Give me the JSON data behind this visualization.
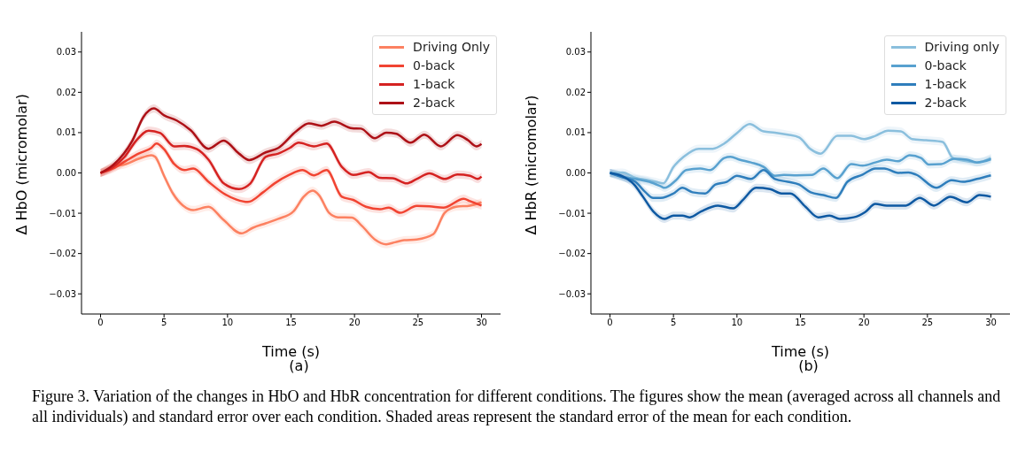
{
  "chart_data": [
    {
      "type": "line",
      "title": "(a)",
      "xlabel": "Time (s)",
      "ylabel": "Δ HbO (micromolar)",
      "xlim": [
        -1.5,
        31.5
      ],
      "ylim": [
        -0.035,
        0.035
      ],
      "xticks": [
        0,
        5,
        10,
        15,
        20,
        25,
        30
      ],
      "yticks": [
        {
          "value": -0.03,
          "label": "−0.03"
        },
        {
          "value": -0.02,
          "label": "−0.02"
        },
        {
          "value": -0.01,
          "label": "−0.01"
        },
        {
          "value": 0,
          "label": "0.00"
        },
        0.01,
        0.02,
        0.03
      ],
      "grid": false,
      "legend": "top right",
      "annotations": [
        "Figure 3. Variation of the changes in HbO and HbR concentration for different conditions. The figures show the mean (averaged across all channels and all individuals) and standard error over each condition. Shaded areas represent the standard error of the mean for each condition."
      ],
      "series": [
        {
          "name": "Driving Only",
          "color": "#fc8161",
          "x": [
            0,
            1.0,
            2.0,
            3.0,
            4.0,
            4.3,
            5.0,
            5.7,
            6.5,
            7.3,
            8.5,
            9.6,
            11.1,
            12.0,
            13.0,
            14.0,
            15.2,
            16.0,
            16.7,
            17.2,
            18.0,
            18.7,
            19.8,
            20.6,
            21.6,
            22.5,
            23.2,
            23.9,
            24.9,
            26.2,
            27.1,
            28.0,
            29.1,
            30.0
          ],
          "values": [
            0,
            0.0015,
            0.0022,
            0.0035,
            0.0044,
            0.004,
            -0.0007,
            -0.0051,
            -0.0081,
            -0.0092,
            -0.0084,
            -0.0114,
            -0.015,
            -0.0136,
            -0.0125,
            -0.0114,
            -0.0095,
            -0.0059,
            -0.0044,
            -0.0055,
            -0.0099,
            -0.011,
            -0.0111,
            -0.0132,
            -0.0165,
            -0.0177,
            -0.0172,
            -0.0167,
            -0.0165,
            -0.0152,
            -0.0099,
            -0.0084,
            -0.0081,
            -0.0073
          ],
          "lower": [
            -0.001,
            0.0005,
            0.0012,
            0.0025,
            0.0034,
            0.003,
            -0.0017,
            -0.0061,
            -0.0091,
            -0.0102,
            -0.0094,
            -0.0124,
            -0.016,
            -0.0146,
            -0.0135,
            -0.0124,
            -0.0105,
            -0.0069,
            -0.0054,
            -0.0065,
            -0.0109,
            -0.012,
            -0.0121,
            -0.0142,
            -0.0175,
            -0.0187,
            -0.0182,
            -0.0177,
            -0.0175,
            -0.0162,
            -0.0109,
            -0.0094,
            -0.0091,
            -0.0083
          ],
          "upper": [
            0.001,
            0.0025,
            0.0032,
            0.0045,
            0.0054,
            0.005,
            0.0003,
            -0.0041,
            -0.0071,
            -0.0082,
            -0.0074,
            -0.0104,
            -0.014,
            -0.0126,
            -0.0115,
            -0.0104,
            -0.0085,
            -0.0049,
            -0.0034,
            -0.0045,
            -0.0089,
            -0.01,
            -0.0101,
            -0.0122,
            -0.0155,
            -0.0167,
            -0.0162,
            -0.0157,
            -0.0155,
            -0.0142,
            -0.0089,
            -0.0074,
            -0.0071,
            -0.0063
          ]
        },
        {
          "name": "0-back",
          "color": "#f14432",
          "x": [
            0,
            1.0,
            2.0,
            3.0,
            4.0,
            4.4,
            5.0,
            5.8,
            6.6,
            7.3,
            8.5,
            9.7,
            10.7,
            11.6,
            12.8,
            13.7,
            14.9,
            15.9,
            16.8,
            17.8,
            19.0,
            19.9,
            20.9,
            22.0,
            22.7,
            23.6,
            24.9,
            25.9,
            27.0,
            28.6,
            29.1,
            30.0
          ],
          "values": [
            0,
            0.0011,
            0.003,
            0.0048,
            0.0062,
            0.0073,
            0.0059,
            0.0022,
            0.0007,
            0.0011,
            -0.0022,
            -0.0051,
            -0.0066,
            -0.0072,
            -0.0048,
            -0.0026,
            -0.0004,
            0.0007,
            -0.0006,
            0.0007,
            -0.0059,
            -0.0067,
            -0.0084,
            -0.009,
            -0.0086,
            -0.0099,
            -0.0082,
            -0.0083,
            -0.0086,
            -0.0064,
            -0.007,
            -0.0081
          ],
          "lower": [
            -0.001,
            0.0001,
            0.002,
            0.0038,
            0.0052,
            0.0063,
            0.0049,
            0.0012,
            -0.0003,
            0.0001,
            -0.0032,
            -0.0061,
            -0.0076,
            -0.0082,
            -0.0058,
            -0.0036,
            -0.0014,
            -0.0003,
            -0.0016,
            -0.0003,
            -0.0069,
            -0.0077,
            -0.0094,
            -0.01,
            -0.0096,
            -0.0109,
            -0.0092,
            -0.0093,
            -0.0096,
            -0.0074,
            -0.008,
            -0.0091
          ],
          "upper": [
            0.001,
            0.0021,
            0.004,
            0.0058,
            0.0072,
            0.0083,
            0.0069,
            0.0032,
            0.0017,
            0.0021,
            -0.0012,
            -0.0041,
            -0.0056,
            -0.0062,
            -0.0038,
            -0.0016,
            0.0006,
            0.0017,
            0.0004,
            0.0017,
            -0.0049,
            -0.0057,
            -0.0074,
            -0.008,
            -0.0076,
            -0.0089,
            -0.0072,
            -0.0073,
            -0.0076,
            -0.0054,
            -0.006,
            -0.0071
          ]
        },
        {
          "name": "1-back",
          "color": "#d52221",
          "x": [
            0,
            1.0,
            1.9,
            2.8,
            3.8,
            4.7,
            5.8,
            6.6,
            7.6,
            8.5,
            9.7,
            10.9,
            11.8,
            13.0,
            14.0,
            14.9,
            15.6,
            16.8,
            17.8,
            19.0,
            19.9,
            21.1,
            22.0,
            23.0,
            24.1,
            24.9,
            25.9,
            27.1,
            28.1,
            29.1,
            29.7,
            30.0
          ],
          "values": [
            0,
            0.0015,
            0.004,
            0.008,
            0.0105,
            0.0099,
            0.0066,
            0.0067,
            0.0059,
            0.0033,
            -0.0026,
            -0.004,
            -0.0026,
            0.004,
            0.0048,
            0.0062,
            0.0075,
            0.0066,
            0.0073,
            0.0015,
            -0.0005,
            0.0002,
            -0.0012,
            -0.0013,
            -0.0026,
            -0.0015,
            -0.0001,
            -0.0015,
            -0.0004,
            -0.0007,
            -0.0015,
            -0.0009
          ],
          "lower": [
            -0.001,
            0.0005,
            0.003,
            0.007,
            0.0095,
            0.0089,
            0.0056,
            0.0057,
            0.0049,
            0.0023,
            -0.0036,
            -0.005,
            -0.0036,
            0.003,
            0.0038,
            0.0052,
            0.0065,
            0.0056,
            0.0063,
            0.0005,
            -0.0015,
            -0.0008,
            -0.0022,
            -0.0023,
            -0.0036,
            -0.0025,
            -0.0011,
            -0.0025,
            -0.0014,
            -0.0017,
            -0.0025,
            -0.0019
          ],
          "upper": [
            0.001,
            0.0025,
            0.005,
            0.009,
            0.0115,
            0.0109,
            0.0076,
            0.0077,
            0.0069,
            0.0043,
            -0.0016,
            -0.003,
            -0.0016,
            0.005,
            0.0058,
            0.0072,
            0.0085,
            0.0076,
            0.0083,
            0.0025,
            0.0005,
            0.0012,
            -0.0002,
            -0.0003,
            -0.0016,
            -0.0005,
            0.0009,
            -0.0005,
            0.0006,
            0.0003,
            -0.0005,
            0.0001
          ]
        },
        {
          "name": "2-back",
          "color": "#ad1117",
          "x": [
            0,
            1.0,
            2.5,
            3.4,
            4.2,
            5.0,
            6.0,
            7.1,
            8.5,
            9.7,
            10.9,
            11.7,
            13.0,
            14.0,
            15.4,
            16.4,
            17.4,
            18.4,
            19.8,
            20.5,
            21.6,
            22.5,
            23.3,
            24.4,
            25.5,
            26.8,
            28.1,
            28.9,
            29.6,
            30.0
          ],
          "values": [
            0,
            0.002,
            0.008,
            0.014,
            0.016,
            0.0143,
            0.013,
            0.0106,
            0.006,
            0.008,
            0.0048,
            0.0032,
            0.0051,
            0.0062,
            0.0103,
            0.0123,
            0.0117,
            0.0127,
            0.0111,
            0.011,
            0.0086,
            0.01,
            0.0097,
            0.0075,
            0.0095,
            0.0066,
            0.0094,
            0.0082,
            0.0066,
            0.0072
          ],
          "lower": [
            -0.001,
            0.001,
            0.007,
            0.013,
            0.015,
            0.0133,
            0.012,
            0.0096,
            0.005,
            0.007,
            0.0038,
            0.0022,
            0.0041,
            0.0052,
            0.0093,
            0.0113,
            0.0107,
            0.0117,
            0.0101,
            0.01,
            0.0076,
            0.009,
            0.0087,
            0.0065,
            0.0085,
            0.0056,
            0.0084,
            0.0072,
            0.0056,
            0.0062
          ],
          "upper": [
            0.001,
            0.003,
            0.009,
            0.015,
            0.017,
            0.0153,
            0.014,
            0.0116,
            0.007,
            0.009,
            0.0058,
            0.0042,
            0.0061,
            0.0072,
            0.0113,
            0.0133,
            0.0127,
            0.0137,
            0.0121,
            0.012,
            0.0096,
            0.011,
            0.0107,
            0.0085,
            0.0105,
            0.0076,
            0.0104,
            0.0092,
            0.0076,
            0.0082
          ]
        }
      ]
    },
    {
      "type": "line",
      "title": "(b)",
      "xlabel": "Time (s)",
      "ylabel": "Δ HbR (micromolar)",
      "xlim": [
        -1.5,
        31.5
      ],
      "ylim": [
        -0.035,
        0.035
      ],
      "xticks": [
        0,
        5,
        10,
        15,
        20,
        25,
        30
      ],
      "yticks": [
        {
          "value": -0.03,
          "label": "−0.03"
        },
        {
          "value": -0.02,
          "label": "−0.02"
        },
        {
          "value": -0.01,
          "label": "−0.01"
        },
        {
          "value": 0,
          "label": "0.00"
        },
        0.01,
        0.02,
        0.03
      ],
      "grid": false,
      "legend": "top right",
      "series": [
        {
          "name": "Driving only",
          "color": "#8abfdd",
          "x": [
            0,
            1.0,
            2.0,
            3.0,
            3.6,
            4.2,
            5.0,
            5.8,
            7.0,
            8.1,
            9.0,
            10.0,
            11.0,
            12.1,
            13.0,
            14.0,
            14.9,
            15.8,
            16.6,
            17.9,
            19.0,
            20.0,
            20.9,
            21.9,
            22.9,
            23.8,
            24.9,
            26.2,
            27.0,
            28.1,
            28.9,
            30.0
          ],
          "values": [
            0,
            0.0001,
            -0.0012,
            -0.0018,
            -0.0022,
            -0.0026,
            0.0015,
            0.004,
            0.006,
            0.006,
            0.0073,
            0.0099,
            0.0121,
            0.0103,
            0.01,
            0.0095,
            0.0088,
            0.0059,
            0.0048,
            0.0092,
            0.0092,
            0.0084,
            0.0092,
            0.0105,
            0.0103,
            0.0084,
            0.0081,
            0.0077,
            0.0037,
            0.0029,
            0.0026,
            0.0037
          ],
          "lower": [
            -0.001,
            -0.0009,
            -0.0022,
            -0.0028,
            -0.0032,
            -0.0036,
            0.0005,
            0.003,
            0.005,
            0.005,
            0.0063,
            0.0089,
            0.0111,
            0.0093,
            0.009,
            0.0085,
            0.0078,
            0.0049,
            0.0038,
            0.0082,
            0.0082,
            0.0074,
            0.0082,
            0.0095,
            0.0093,
            0.0074,
            0.0071,
            0.0067,
            0.0027,
            0.0019,
            0.0016,
            0.0027
          ],
          "upper": [
            0.001,
            0.0011,
            -0.0002,
            -0.0008,
            -0.0012,
            -0.0016,
            0.0025,
            0.005,
            0.007,
            0.007,
            0.0083,
            0.0109,
            0.0131,
            0.0113,
            0.011,
            0.0105,
            0.0098,
            0.0069,
            0.0058,
            0.0102,
            0.0102,
            0.0094,
            0.0102,
            0.0115,
            0.0113,
            0.0094,
            0.0091,
            0.0087,
            0.0047,
            0.0039,
            0.0036,
            0.0047
          ]
        },
        {
          "name": "0-back",
          "color": "#58a1cf",
          "x": [
            0,
            1.0,
            2.0,
            3.1,
            4.0,
            4.3,
            5.2,
            6.0,
            7.1,
            7.9,
            9.0,
            9.5,
            10.2,
            11.1,
            12.1,
            13.0,
            13.7,
            14.7,
            15.9,
            16.8,
            17.9,
            19.0,
            19.9,
            20.9,
            21.8,
            22.7,
            23.6,
            24.5,
            25.1,
            26.1,
            27.1,
            28.1,
            28.9,
            30.0
          ],
          "values": [
            0,
            -0.0009,
            -0.0015,
            -0.0022,
            -0.0033,
            -0.0037,
            -0.0018,
            0.0007,
            0.0011,
            0.0007,
            0.0037,
            0.004,
            0.0033,
            0.0026,
            0.0015,
            -0.0007,
            -0.0005,
            -0.0006,
            -0.0005,
            0.0011,
            -0.0013,
            0.0022,
            0.0018,
            0.0026,
            0.0033,
            0.0029,
            0.0044,
            0.0037,
            0.0021,
            0.0022,
            0.0035,
            0.0033,
            0.0026,
            0.0034
          ],
          "lower": [
            -0.001,
            -0.0019,
            -0.0025,
            -0.0032,
            -0.0043,
            -0.0047,
            -0.0028,
            -0.0003,
            0.0001,
            -0.0003,
            0.0027,
            0.003,
            0.0023,
            0.0016,
            0.0005,
            -0.0017,
            -0.0015,
            -0.0016,
            -0.0015,
            0.0001,
            -0.0023,
            0.0012,
            0.0008,
            0.0016,
            0.0023,
            0.0019,
            0.0034,
            0.0027,
            0.0011,
            0.0012,
            0.0025,
            0.0023,
            0.0016,
            0.0024
          ],
          "upper": [
            0.001,
            0.0001,
            -0.0005,
            -0.0012,
            -0.0023,
            -0.0027,
            -0.0008,
            0.0017,
            0.0021,
            0.0017,
            0.0047,
            0.005,
            0.0043,
            0.0036,
            0.0025,
            0.0003,
            0.0005,
            0.0004,
            0.0005,
            0.0021,
            -0.0003,
            0.0032,
            0.0028,
            0.0036,
            0.0043,
            0.0039,
            0.0054,
            0.0047,
            0.0031,
            0.0032,
            0.0045,
            0.0043,
            0.0036,
            0.0044
          ]
        },
        {
          "name": "1-back",
          "color": "#2f7ebc",
          "x": [
            0,
            1.0,
            2.0,
            2.8,
            3.4,
            4.0,
            5.0,
            5.7,
            6.5,
            7.5,
            8.3,
            9.2,
            10.0,
            11.1,
            12.1,
            13.0,
            14.0,
            14.9,
            15.8,
            16.8,
            17.8,
            18.7,
            19.9,
            20.9,
            21.6,
            22.7,
            23.5,
            24.1,
            25.7,
            26.9,
            27.8,
            28.9,
            30.0
          ],
          "values": [
            0,
            -0.0011,
            -0.0022,
            -0.0048,
            -0.0062,
            -0.0062,
            -0.0051,
            -0.0037,
            -0.0048,
            -0.0051,
            -0.0029,
            -0.0022,
            -0.0007,
            -0.0015,
            0.0007,
            -0.0015,
            -0.0022,
            -0.0029,
            -0.0048,
            -0.0055,
            -0.0062,
            -0.0022,
            -0.0004,
            0.0011,
            0.0011,
            0,
            0.0001,
            -0.0004,
            -0.0037,
            -0.0018,
            -0.0022,
            -0.0015,
            -0.0006
          ],
          "lower": [
            -0.001,
            -0.0021,
            -0.0032,
            -0.0058,
            -0.0072,
            -0.0072,
            -0.0061,
            -0.0047,
            -0.0058,
            -0.0061,
            -0.0039,
            -0.0032,
            -0.0017,
            -0.0025,
            -0.0003,
            -0.0025,
            -0.0032,
            -0.0039,
            -0.0058,
            -0.0065,
            -0.0072,
            -0.0032,
            -0.0014,
            0.0001,
            0.0001,
            -0.001,
            -0.0009,
            -0.0014,
            -0.0047,
            -0.0028,
            -0.0032,
            -0.0025,
            -0.0016
          ],
          "upper": [
            0.001,
            -0.0001,
            -0.0012,
            -0.0038,
            -0.0052,
            -0.0052,
            -0.0041,
            -0.0027,
            -0.0038,
            -0.0041,
            -0.0019,
            -0.0012,
            0.0003,
            -0.0005,
            0.0017,
            -0.0005,
            -0.0012,
            -0.0019,
            -0.0038,
            -0.0045,
            -0.0052,
            -0.0012,
            0.0006,
            0.0021,
            0.0021,
            0.001,
            0.0011,
            0.0006,
            -0.0027,
            -0.0008,
            -0.0012,
            -0.0005,
            0.0004
          ]
        },
        {
          "name": "2-back",
          "color": "#0e59a2",
          "x": [
            0,
            0.9,
            1.9,
            2.6,
            3.4,
            4.3,
            5.0,
            5.7,
            6.3,
            7.2,
            8.5,
            9.7,
            10.5,
            11.5,
            12.6,
            13.5,
            14.2,
            15.4,
            16.4,
            17.3,
            18.1,
            19.2,
            20.1,
            20.9,
            21.8,
            22.7,
            23.3,
            24.4,
            25.5,
            26.8,
            28.1,
            29.1,
            30.0
          ],
          "values": [
            0,
            -0.0007,
            -0.0029,
            -0.0059,
            -0.0095,
            -0.0114,
            -0.0106,
            -0.0106,
            -0.011,
            -0.0095,
            -0.0081,
            -0.0088,
            -0.0066,
            -0.0037,
            -0.004,
            -0.0051,
            -0.0051,
            -0.0084,
            -0.011,
            -0.0106,
            -0.0114,
            -0.011,
            -0.0097,
            -0.0077,
            -0.0081,
            -0.0081,
            -0.0081,
            -0.0062,
            -0.0081,
            -0.0059,
            -0.0073,
            -0.0055,
            -0.0059
          ],
          "lower": [
            -0.001,
            -0.0017,
            -0.0039,
            -0.0069,
            -0.0105,
            -0.0124,
            -0.0116,
            -0.0116,
            -0.012,
            -0.0105,
            -0.0091,
            -0.0098,
            -0.0076,
            -0.0047,
            -0.005,
            -0.0061,
            -0.0061,
            -0.0094,
            -0.012,
            -0.0116,
            -0.0124,
            -0.012,
            -0.0107,
            -0.0087,
            -0.0091,
            -0.0091,
            -0.0091,
            -0.0072,
            -0.0091,
            -0.0069,
            -0.0083,
            -0.0065,
            -0.0069
          ],
          "upper": [
            0.001,
            0.0003,
            -0.0019,
            -0.0049,
            -0.0085,
            -0.0104,
            -0.0096,
            -0.0096,
            -0.01,
            -0.0085,
            -0.0071,
            -0.0078,
            -0.0056,
            -0.0027,
            -0.003,
            -0.0041,
            -0.0041,
            -0.0074,
            -0.01,
            -0.0096,
            -0.0104,
            -0.01,
            -0.0087,
            -0.0067,
            -0.0071,
            -0.0071,
            -0.0071,
            -0.0052,
            -0.0071,
            -0.0049,
            -0.0063,
            -0.0045,
            -0.0049
          ]
        }
      ]
    }
  ]
}
